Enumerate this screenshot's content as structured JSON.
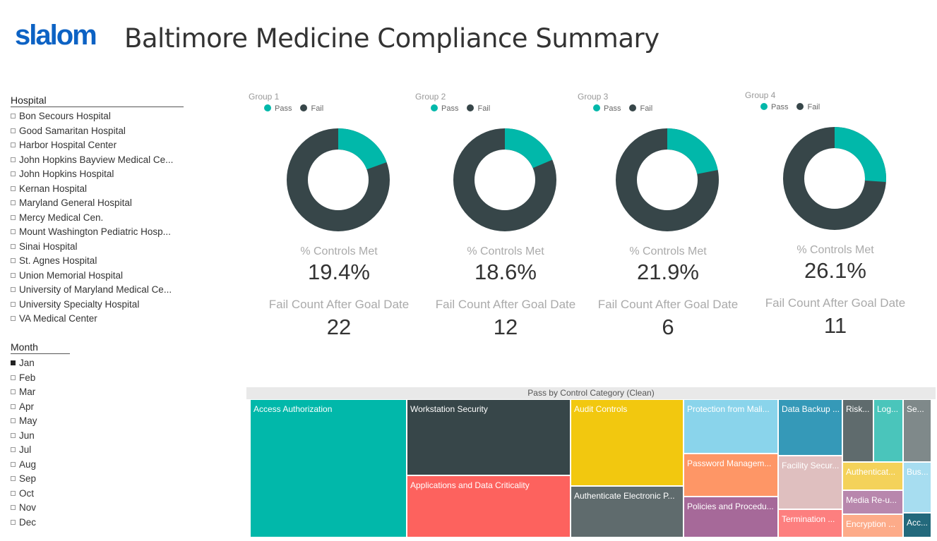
{
  "header": {
    "logo": "slalom",
    "title": "Baltimore Medicine Compliance Summary"
  },
  "colors": {
    "pass": "#01b8aa",
    "fail": "#374649"
  },
  "hospital_slicer": {
    "title": "Hospital",
    "items": [
      "Bon Secours Hospital",
      "Good Samaritan Hospital",
      "Harbor Hospital Center",
      "John Hopkins Bayview Medical Ce...",
      "John Hopkins Hospital",
      "Kernan Hospital",
      "Maryland General Hospital",
      "Mercy Medical Cen.",
      "Mount Washington Pediatric Hosp...",
      "Sinai Hospital",
      "St. Agnes Hospital",
      "Union Memorial Hospital",
      "University of Maryland Medical Ce...",
      "University Specialty Hospital",
      "VA Medical Center"
    ]
  },
  "month_slicer": {
    "title": "Month",
    "items": [
      "Jan",
      "Feb",
      "Mar",
      "Apr",
      "May",
      "Jun",
      "Jul",
      "Aug",
      "Sep",
      "Oct",
      "Nov",
      "Dec"
    ],
    "selected": "Jan"
  },
  "groups": [
    {
      "name": "Group 1",
      "legend_pass": "Pass",
      "legend_fail": "Fail",
      "metric_label": "% Controls Met",
      "pct_value": 19.4,
      "pct": "19.4%",
      "fail_label": "Fail Count After Goal Date",
      "fail_count": "22"
    },
    {
      "name": "Group 2",
      "legend_pass": "Pass",
      "legend_fail": "Fail",
      "metric_label": "% Controls Met",
      "pct_value": 18.6,
      "pct": "18.6%",
      "fail_label": "Fail Count After Goal Date",
      "fail_count": "12"
    },
    {
      "name": "Group 3",
      "legend_pass": "Pass",
      "legend_fail": "Fail",
      "metric_label": "% Controls Met",
      "pct_value": 21.9,
      "pct": "21.9%",
      "fail_label": "Fail Count After Goal Date",
      "fail_count": "6"
    },
    {
      "name": "Group 4",
      "legend_pass": "Pass",
      "legend_fail": "Fail",
      "metric_label": "% Controls Met",
      "pct_value": 26.1,
      "pct": "26.1%",
      "fail_label": "Fail Count After Goal Date",
      "fail_count": "11"
    }
  ],
  "treemap": {
    "title": "Pass by Control Category (Clean)",
    "tiles": [
      {
        "label": "Access Authorization",
        "color": "#01b8aa"
      },
      {
        "label": "Workstation Security",
        "color": "#374649"
      },
      {
        "label": "Applications and Data Criticality",
        "color": "#fd625e"
      },
      {
        "label": "Audit Controls",
        "color": "#f2c80f"
      },
      {
        "label": "Authenticate Electronic P...",
        "color": "#5f6b6d"
      },
      {
        "label": "Protection from Mali...",
        "color": "#8ad4eb"
      },
      {
        "label": "Password Managem...",
        "color": "#fe9666"
      },
      {
        "label": "Policies and Procedu...",
        "color": "#a66999"
      },
      {
        "label": "Data Backup ...",
        "color": "#3599b8"
      },
      {
        "label": "Facility Secur...",
        "color": "#dfbfbf"
      },
      {
        "label": "Termination ...",
        "color": "#fd7f7f"
      },
      {
        "label": "Risk...",
        "color": "#5f6b6d"
      },
      {
        "label": "Log...",
        "color": "#4ac5bb"
      },
      {
        "label": "Se...",
        "color": "#7f898a"
      },
      {
        "label": "Authenticat...",
        "color": "#f4d25a"
      },
      {
        "label": "Media Re-u...",
        "color": "#b887ad"
      },
      {
        "label": "Encryption ...",
        "color": "#fdab89"
      },
      {
        "label": "Bus...",
        "color": "#a7ddf0"
      },
      {
        "label": "Acc...",
        "color": "#23697c"
      }
    ]
  }
}
